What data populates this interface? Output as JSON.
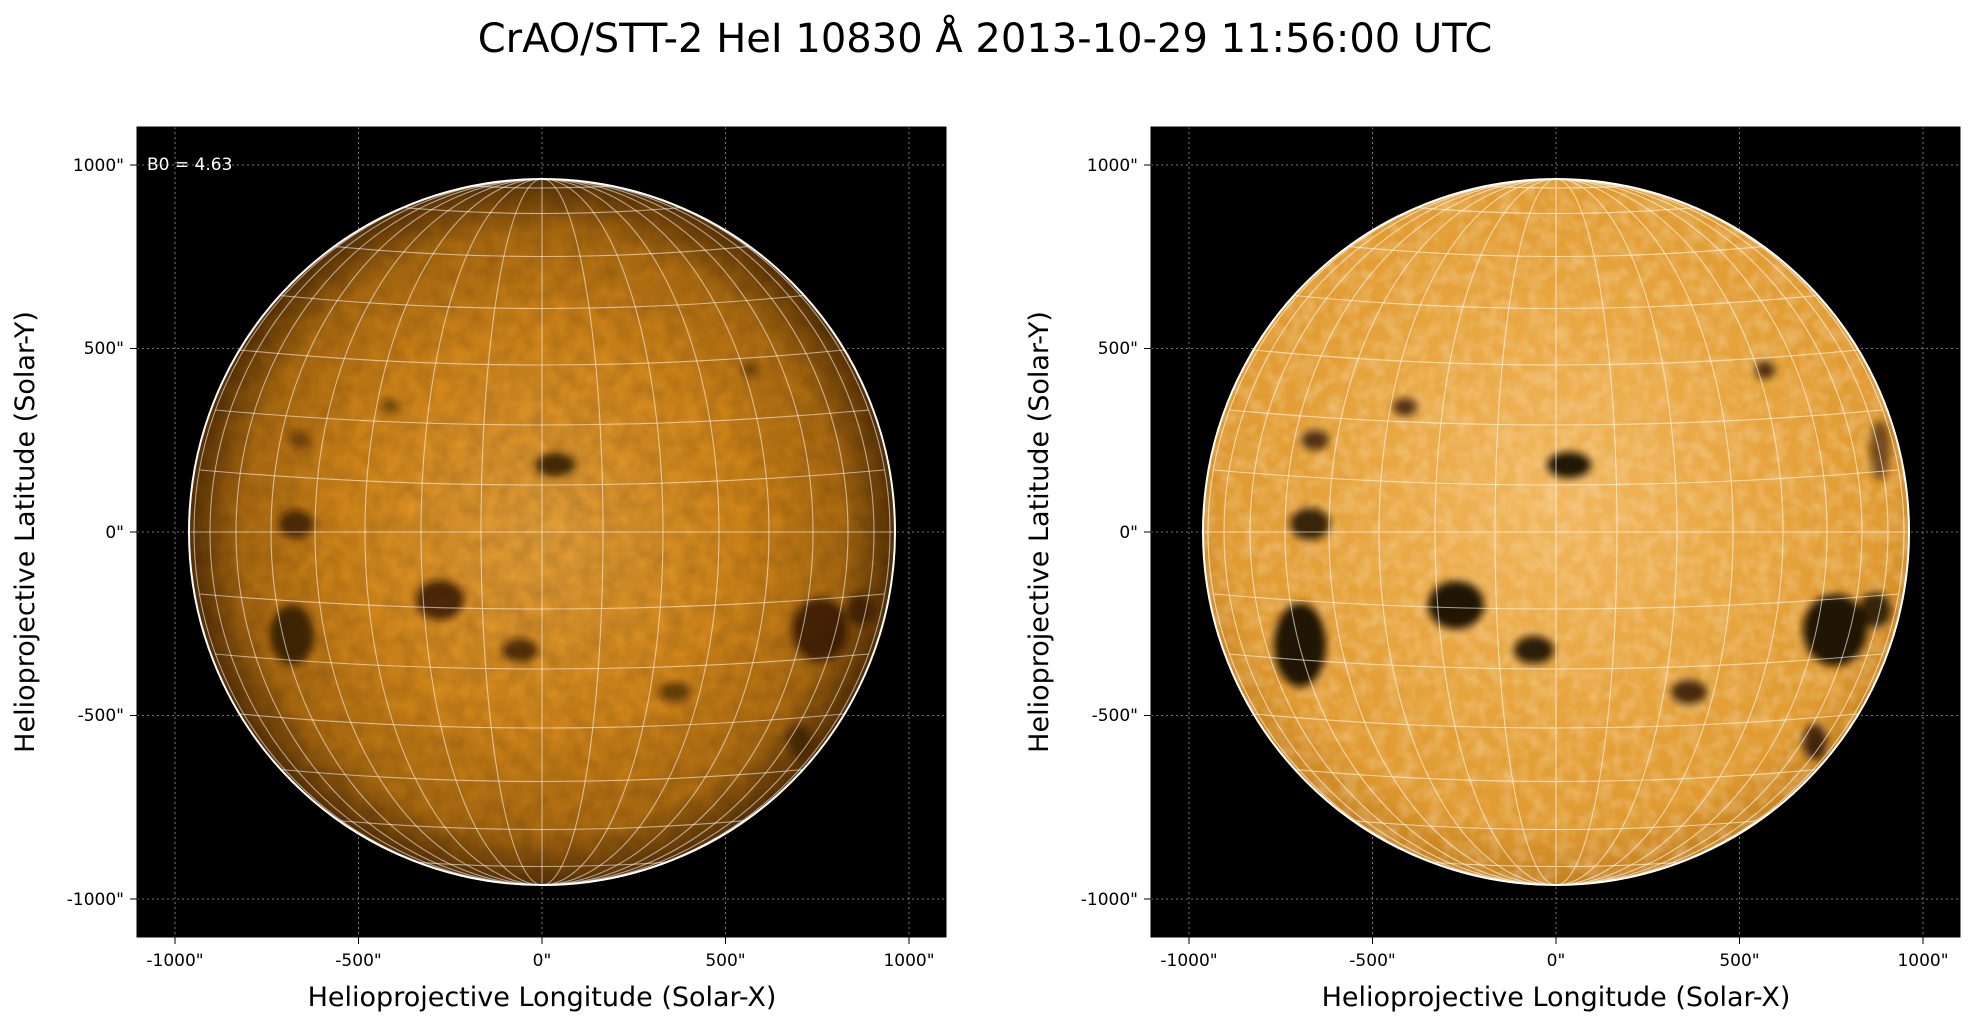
{
  "figure": {
    "title": "CrAO/STT-2 HeI 10830 Å 2013-10-29 11:56:00 UTC"
  },
  "panels": [
    {
      "id": "left",
      "style": "normal",
      "annotation": "B0 = 4.63",
      "xlabel": "Helioprojective Longitude (Solar-X)",
      "ylabel": "Helioprojective Latitude (Solar-Y)",
      "xticks": [
        "-1000\"",
        "-500\"",
        "0\"",
        "500\"",
        "1000\""
      ],
      "yticks": [
        "1000\"",
        "500\"",
        "0\"",
        "-500\"",
        "-1000\""
      ]
    },
    {
      "id": "right",
      "style": "enhanced",
      "annotation": "",
      "xlabel": "Helioprojective Longitude (Solar-X)",
      "ylabel": "Helioprojective Latitude (Solar-Y)",
      "xticks": [
        "-1000\"",
        "-500\"",
        "0\"",
        "500\"",
        "1000\""
      ],
      "yticks": [
        "1000\"",
        "500\"",
        "0\"",
        "-500\"",
        "-1000\""
      ]
    }
  ],
  "colors": {
    "background": "#000000",
    "disk_center": "#e8a23a",
    "disk_mid": "#d88a1a",
    "disk_limb": "#5a3205",
    "enhanced_center": "#f4c070",
    "enhanced_mid": "#e39a2c",
    "grid_line": "#ffffff",
    "dark_feature": "#140800"
  }
}
